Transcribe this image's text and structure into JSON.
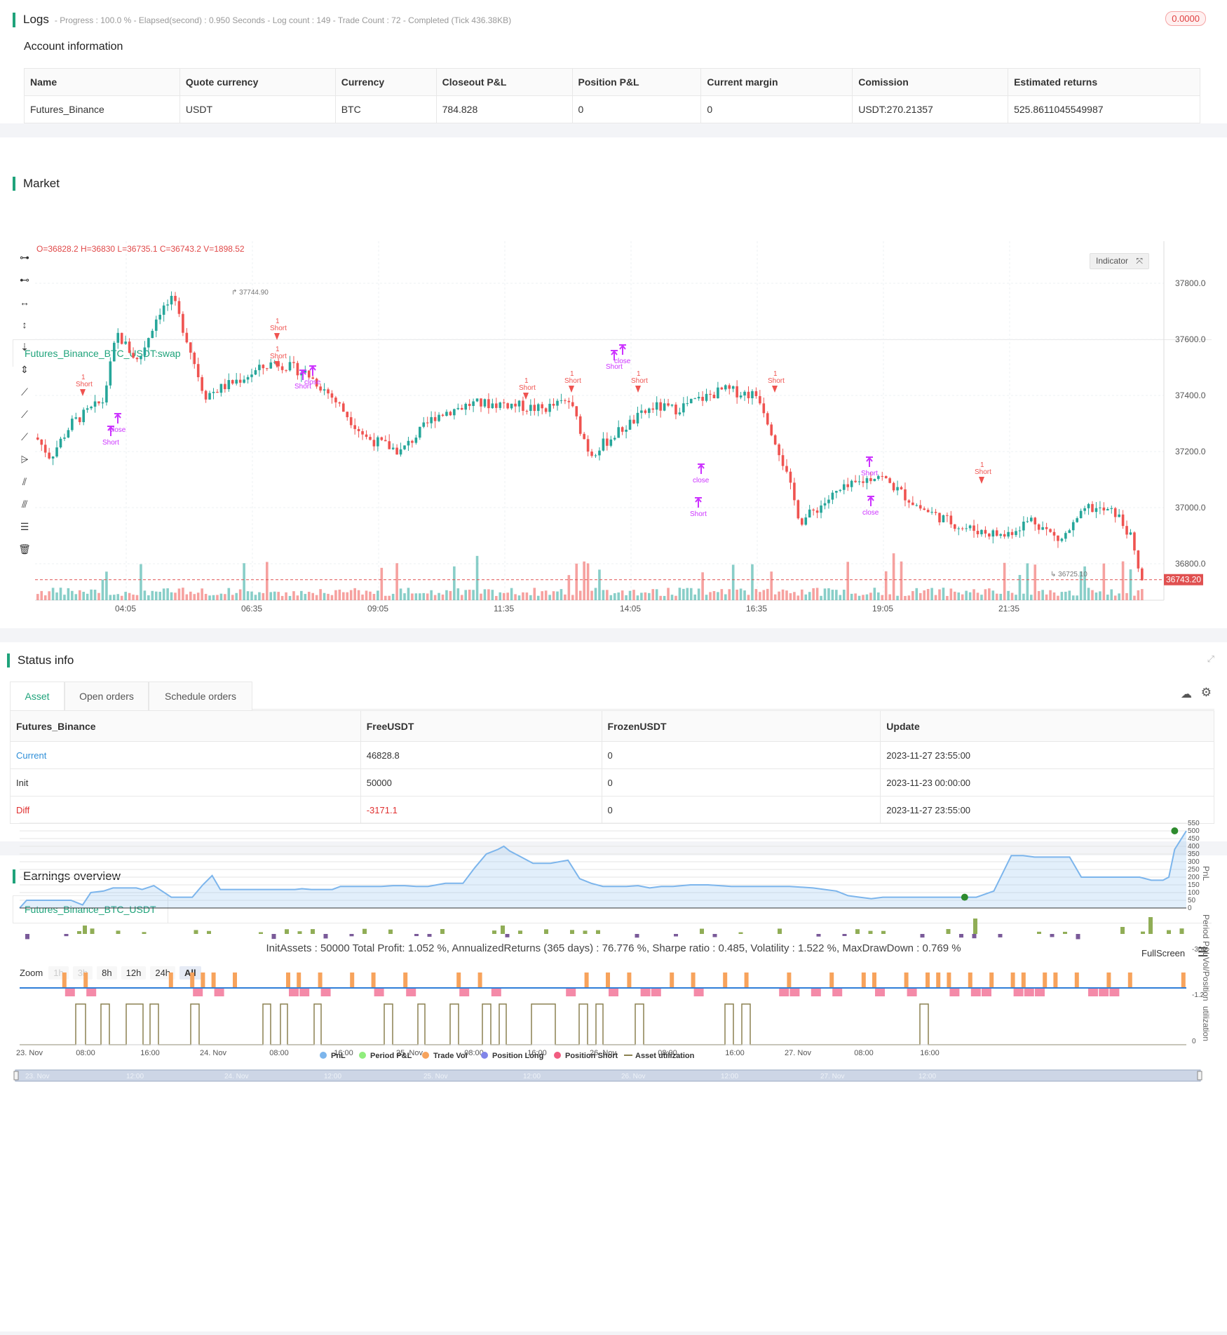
{
  "logs": {
    "title": "Logs",
    "status": "- Progress : 100.0 % - Elapsed(second) : 0.950  Seconds - Log count : 149 - Trade Count : 72 - Completed (Tick 436.38KB)",
    "badge": "0.0000"
  },
  "account": {
    "title": "Account information",
    "headers": [
      "Name",
      "Quote currency",
      "Currency",
      "Closeout P&L",
      "Position P&L",
      "Current margin",
      "Comission",
      "Estimated returns"
    ],
    "row": [
      "Futures_Binance",
      "USDT",
      "BTC",
      "784.828",
      "0",
      "0",
      "USDT:270.21357",
      "525.8611045549987"
    ]
  },
  "market": {
    "title": "Market",
    "tab": "Futures_Binance_BTC_USDT:swap",
    "ohlc": "O=36828.2 H=36830 L=36735.1 C=36743.2 V=1898.52",
    "indicator_label": "Indicator",
    "high_label": "37744.90",
    "low_label": "36725.10",
    "last_price": "36743.20",
    "price_ticks": [
      "37800.00",
      "37600.00",
      "37400.00",
      "37200.00",
      "37000.00",
      "36800.00"
    ],
    "time_ticks": [
      "04:05",
      "06:35",
      "09:05",
      "11:35",
      "14:05",
      "16:35",
      "19:05",
      "21:35"
    ],
    "signal_short": "Short",
    "signal_close": "close",
    "signal_one": "1"
  },
  "chart_data": {
    "type": "candlestick",
    "price_range": [
      36650,
      37950
    ],
    "last_close": 36743.2,
    "high": 37744.9,
    "low": 36725.1,
    "x_ticks": [
      "04:05",
      "06:35",
      "09:05",
      "11:35",
      "14:05",
      "16:35",
      "19:05",
      "21:35"
    ],
    "y_ticks": [
      37800,
      37600,
      37400,
      37200,
      37000,
      36800
    ],
    "earnings": {
      "pnl_ticks": [
        550,
        500,
        450,
        400,
        350,
        300,
        250,
        200,
        150,
        100,
        50,
        0
      ],
      "x_ticks": [
        "23. Nov",
        "08:00",
        "16:00",
        "24. Nov",
        "08:00",
        "16:00",
        "25. Nov",
        "08:00",
        "16:00",
        "26. Nov",
        "08:00",
        "16:00",
        "27. Nov",
        "08:00",
        "16:00"
      ],
      "pnl_min": 0,
      "pnl_max": 500,
      "period_pnl_min_label": "-300",
      "vol_label": "-1.2",
      "asset_util_label": "0"
    }
  },
  "status": {
    "title": "Status info",
    "tabs": [
      "Asset",
      "Open orders",
      "Schedule orders"
    ],
    "headers": [
      "Futures_Binance",
      "FreeUSDT",
      "FrozenUSDT",
      "Update"
    ],
    "rows": [
      [
        "Current",
        "46828.8",
        "0",
        "2023-11-27 23:55:00"
      ],
      [
        "Init",
        "50000",
        "0",
        "2023-11-23 00:00:00"
      ],
      [
        "Diff",
        "-3171.1",
        "0",
        "2023-11-27 23:55:00"
      ]
    ]
  },
  "earnings": {
    "title": "Earnings overview",
    "tab": "Futures_Binance_BTC_USDT",
    "summary": "InitAssets : 50000 Total Profit: 1.052 %, AnnualizedReturns (365 days) : 76.776 %, Sharpe ratio : 0.485, Volatility : 1.522 %, MaxDrawDown : 0.769 %",
    "fullscreen": "FullScreen",
    "zoom_label": "Zoom",
    "zoom_options": [
      "1h",
      "3h",
      "8h",
      "12h",
      "24h",
      "All"
    ],
    "axis_pnl": "PnL",
    "axis_period": "Period P&L",
    "axis_vol": "Vol/Position",
    "axis_util": "utilization",
    "legend": [
      "PnL",
      "Period P&L",
      "Trade Vol",
      "Position Long",
      "Position Short",
      "Asset utilization"
    ],
    "navigator_ticks": [
      "23. Nov",
      "12:00",
      "24. Nov",
      "12:00",
      "25. Nov",
      "12:00",
      "26. Nov",
      "12:00",
      "27. Nov",
      "12:00"
    ]
  },
  "colors": {
    "accent": "#1fa37b",
    "up": "#26a69a",
    "down": "#ef5350",
    "signal": "#cc33ff",
    "pnl_line": "#7cb5ec"
  }
}
